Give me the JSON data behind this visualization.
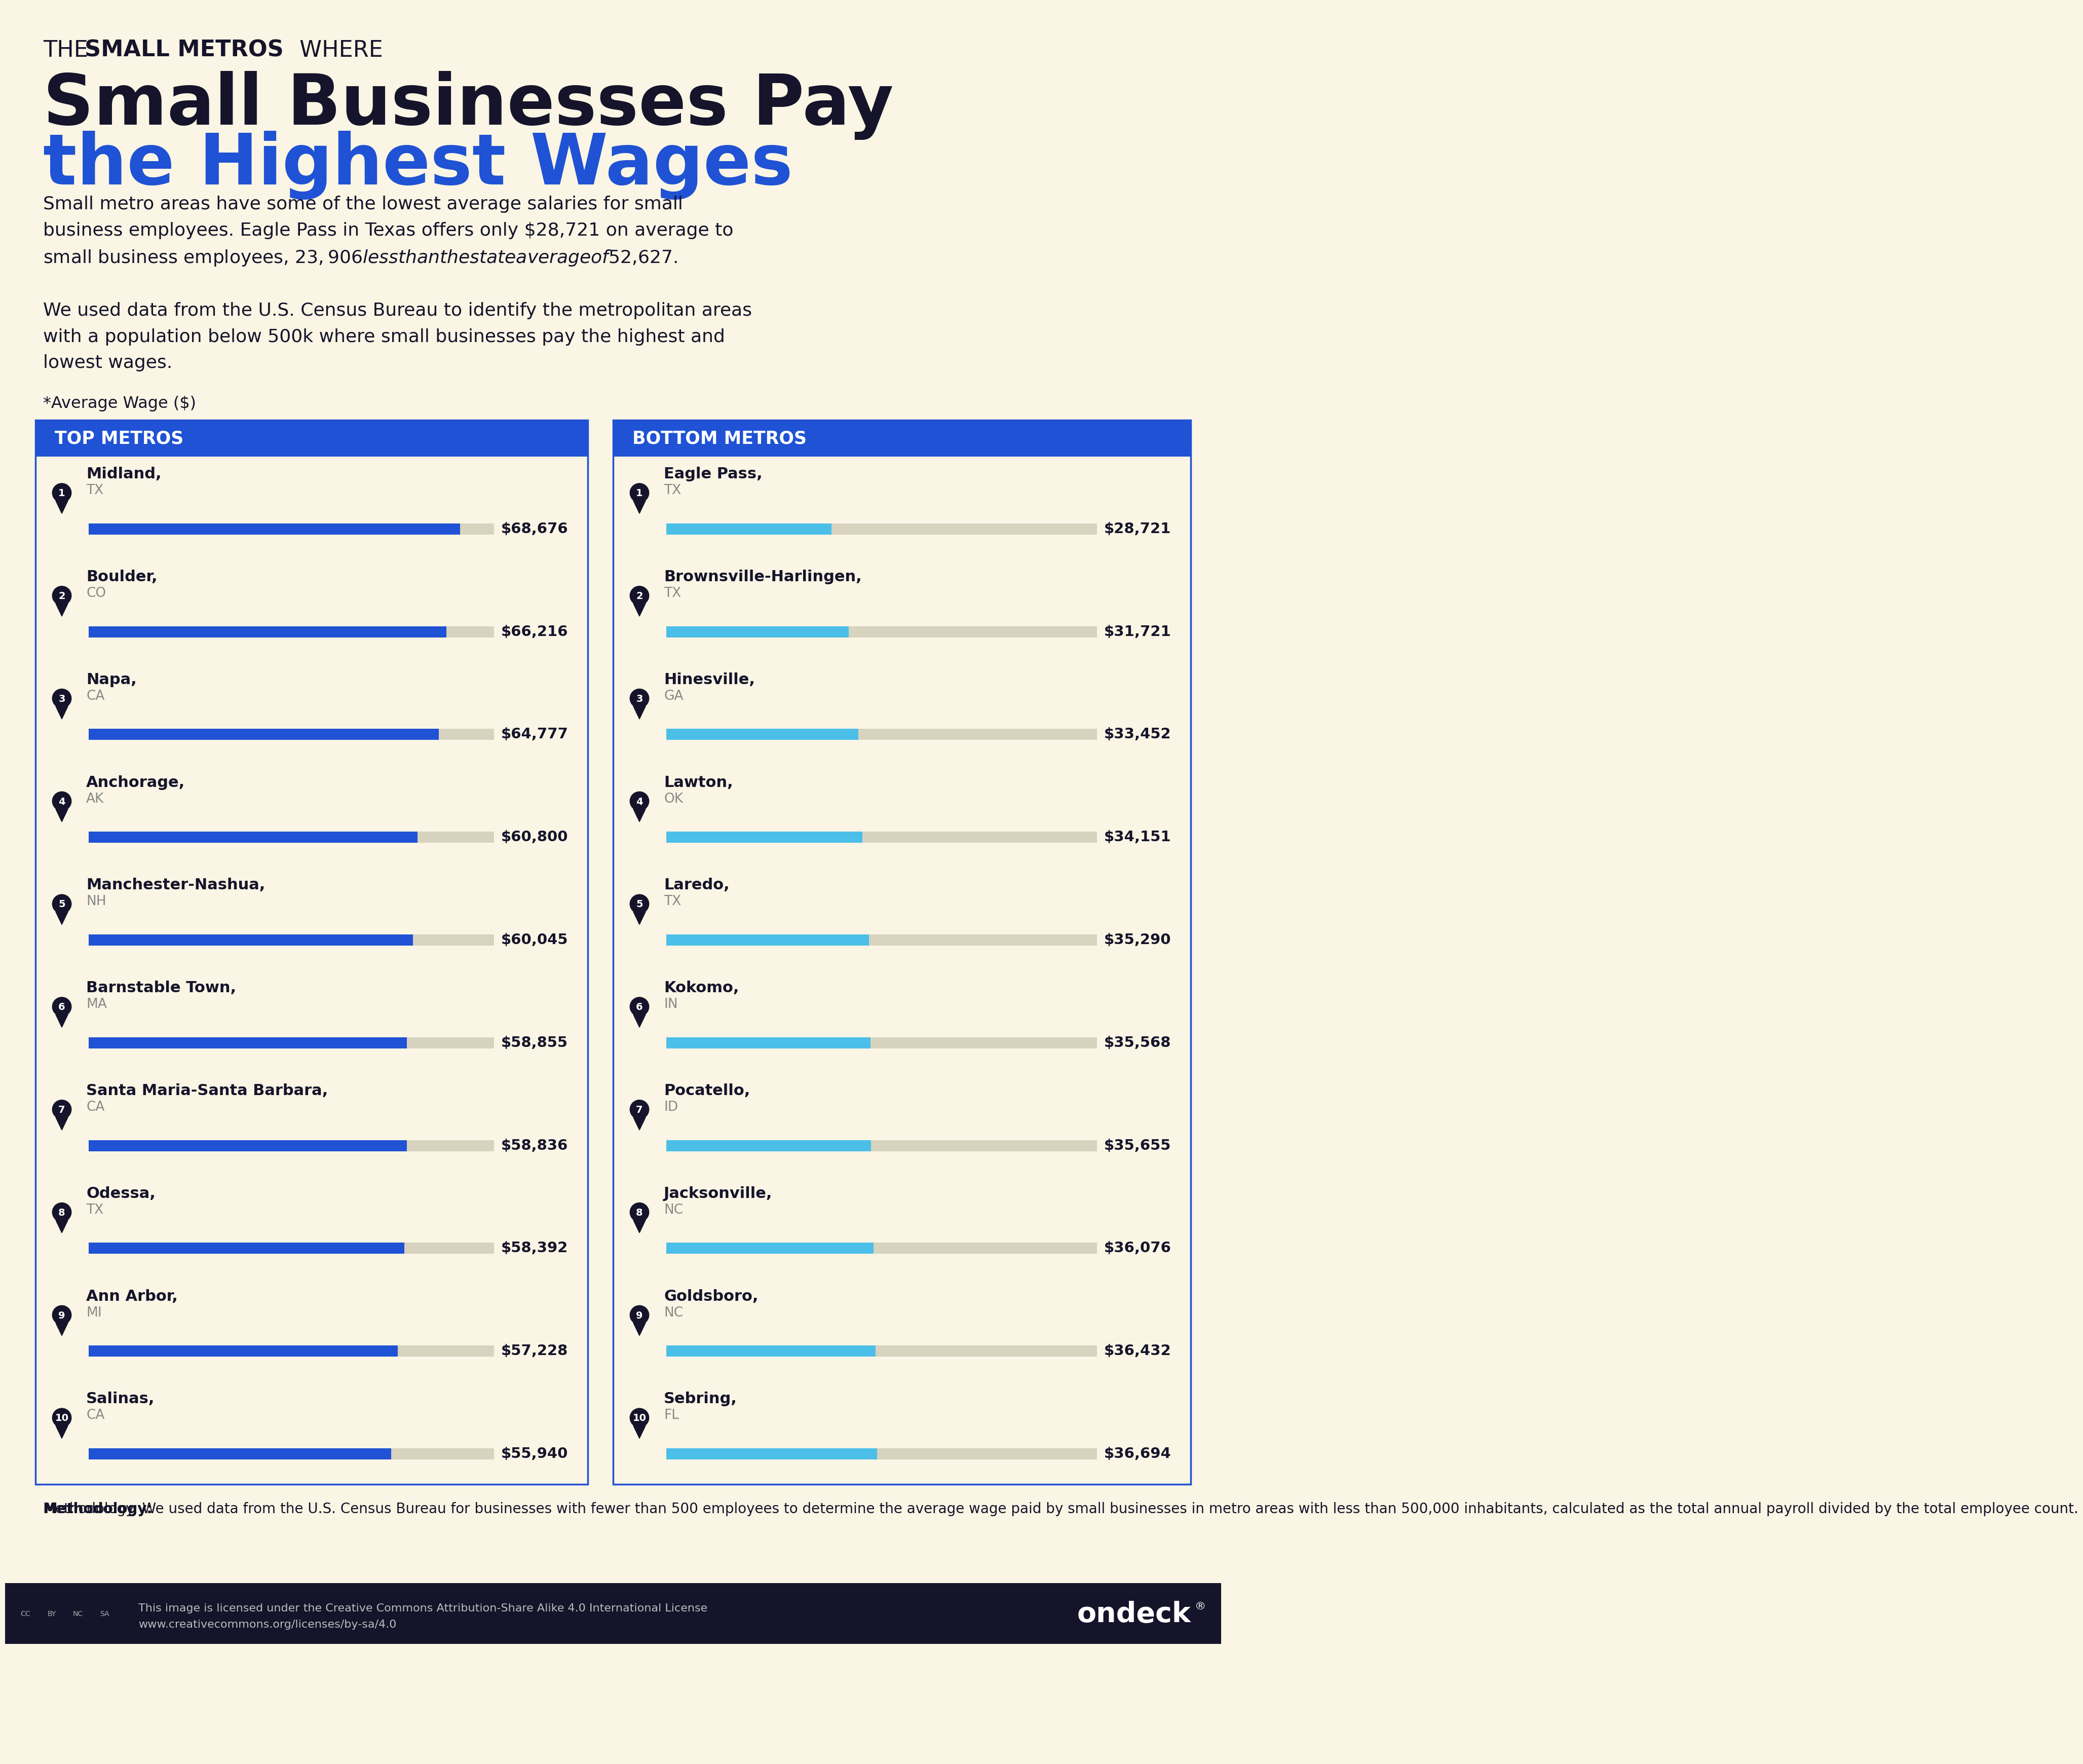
{
  "bg_color": "#FAF5E4",
  "title_line1_normal": "THE ",
  "title_line1_bold": "SMALL METROS",
  "title_line1_normal2": " WHERE",
  "title_line2": "Small Businesses Pay",
  "title_line3": "the Highest Wages",
  "subtitle1": "Small metro areas have some of the lowest average salaries for small\nbusiness employees. Eagle Pass in Texas offers only $28,721 on average to\nsmall business employees, $23,906 less than the state average of $52,627.",
  "subtitle2": "We used data from the U.S. Census Bureau to identify the metropolitan areas\nwith a population below 500k where small businesses pay the highest and\nlowest wages.",
  "avg_wage_label": "*Average Wage ($)",
  "top_header": "TOP METROS",
  "bottom_header": "BOTTOM METROS",
  "header_bg": "#1F52D4",
  "header_text_color": "#FFFFFF",
  "panel_bg": "#FAF5E4",
  "panel_border_color": "#1F52D4",
  "bar_color_top": "#1F52D4",
  "bar_color_bottom": "#4BBFE8",
  "bar_bg_color": "#D8D3BE",
  "badge_color": "#15142B",
  "badge_text_color": "#FFFFFF",
  "text_color": "#15142B",
  "state_color": "#888888",
  "top_metros": [
    {
      "rank": 1,
      "city": "Midland,",
      "state": "TX",
      "value": 68676,
      "label": "$68,676"
    },
    {
      "rank": 2,
      "city": "Boulder,",
      "state": "CO",
      "value": 66216,
      "label": "$66,216"
    },
    {
      "rank": 3,
      "city": "Napa,",
      "state": "CA",
      "value": 64777,
      "label": "$64,777"
    },
    {
      "rank": 4,
      "city": "Anchorage,",
      "state": "AK",
      "value": 60800,
      "label": "$60,800"
    },
    {
      "rank": 5,
      "city": "Manchester-Nashua,",
      "state": "NH",
      "value": 60045,
      "label": "$60,045"
    },
    {
      "rank": 6,
      "city": "Barnstable Town,",
      "state": "MA",
      "value": 58855,
      "label": "$58,855"
    },
    {
      "rank": 7,
      "city": "Santa Maria-Santa Barbara,",
      "state": "CA",
      "value": 58836,
      "label": "$58,836"
    },
    {
      "rank": 8,
      "city": "Odessa,",
      "state": "TX",
      "value": 58392,
      "label": "$58,392"
    },
    {
      "rank": 9,
      "city": "Ann Arbor,",
      "state": "MI",
      "value": 57228,
      "label": "$57,228"
    },
    {
      "rank": 10,
      "city": "Salinas,",
      "state": "CA",
      "value": 55940,
      "label": "$55,940"
    }
  ],
  "bottom_metros": [
    {
      "rank": 1,
      "city": "Eagle Pass,",
      "state": "TX",
      "value": 28721,
      "label": "$28,721"
    },
    {
      "rank": 2,
      "city": "Brownsville-Harlingen,",
      "state": "TX",
      "value": 31721,
      "label": "$31,721"
    },
    {
      "rank": 3,
      "city": "Hinesville,",
      "state": "GA",
      "value": 33452,
      "label": "$33,452"
    },
    {
      "rank": 4,
      "city": "Lawton,",
      "state": "OK",
      "value": 34151,
      "label": "$34,151"
    },
    {
      "rank": 5,
      "city": "Laredo,",
      "state": "TX",
      "value": 35290,
      "label": "$35,290"
    },
    {
      "rank": 6,
      "city": "Kokomo,",
      "state": "IN",
      "value": 35568,
      "label": "$35,568"
    },
    {
      "rank": 7,
      "city": "Pocatello,",
      "state": "ID",
      "value": 35655,
      "label": "$35,655"
    },
    {
      "rank": 8,
      "city": "Jacksonville,",
      "state": "NC",
      "value": 36076,
      "label": "$36,076"
    },
    {
      "rank": 9,
      "city": "Goldsboro,",
      "state": "NC",
      "value": 36432,
      "label": "$36,432"
    },
    {
      "rank": 10,
      "city": "Sebring,",
      "state": "FL",
      "value": 36694,
      "label": "$36,694"
    }
  ],
  "max_bar_value": 75000,
  "methodology_bold": "Methodology:",
  "methodology_rest": " We used data from the U.S. Census Bureau for businesses with fewer than 500 employees to determine the average wage paid by small businesses in metro areas with less than 500,000 inhabitants, calculated as the total annual payroll divided by the total employee count.",
  "footer_bg": "#15142B",
  "footer_brand": "ondeck",
  "license_text_line1": "This image is licensed under the Creative Commons Attribution-Share Alike 4.0 International License",
  "license_text_line2": "www.creativecommons.org/licenses/by-sa/4.0",
  "title_line2_color": "#15142B",
  "title_line3_color": "#1F52D4"
}
